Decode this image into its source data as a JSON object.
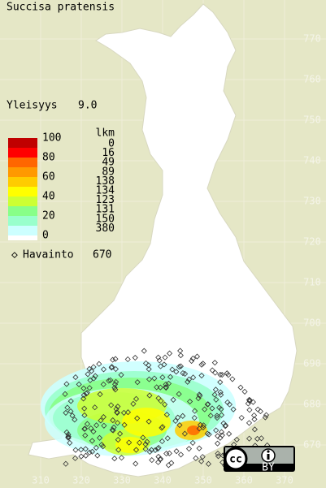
{
  "title": "Succisa pratensis",
  "frequency": {
    "label": "Yleisyys",
    "value": "9.0"
  },
  "legend": {
    "scale": [
      100,
      80,
      60,
      40,
      20,
      0
    ],
    "count_header": "lkm",
    "counts": [
      0,
      16,
      49,
      89,
      138,
      134,
      123,
      131,
      150,
      380
    ],
    "colors": [
      "#c00000",
      "#ff0000",
      "#ff6600",
      "#ff9900",
      "#ffcc00",
      "#ffff00",
      "#ccff33",
      "#88ff88",
      "#99ffcc",
      "#ccffff"
    ]
  },
  "observations": {
    "label": "Havainto",
    "value": 670
  },
  "x_labels": [
    310,
    320,
    330,
    340,
    350,
    360,
    370
  ],
  "y_labels": [
    670,
    680,
    690,
    700,
    710,
    720,
    730,
    740,
    750,
    760,
    770
  ],
  "license": "BY"
}
